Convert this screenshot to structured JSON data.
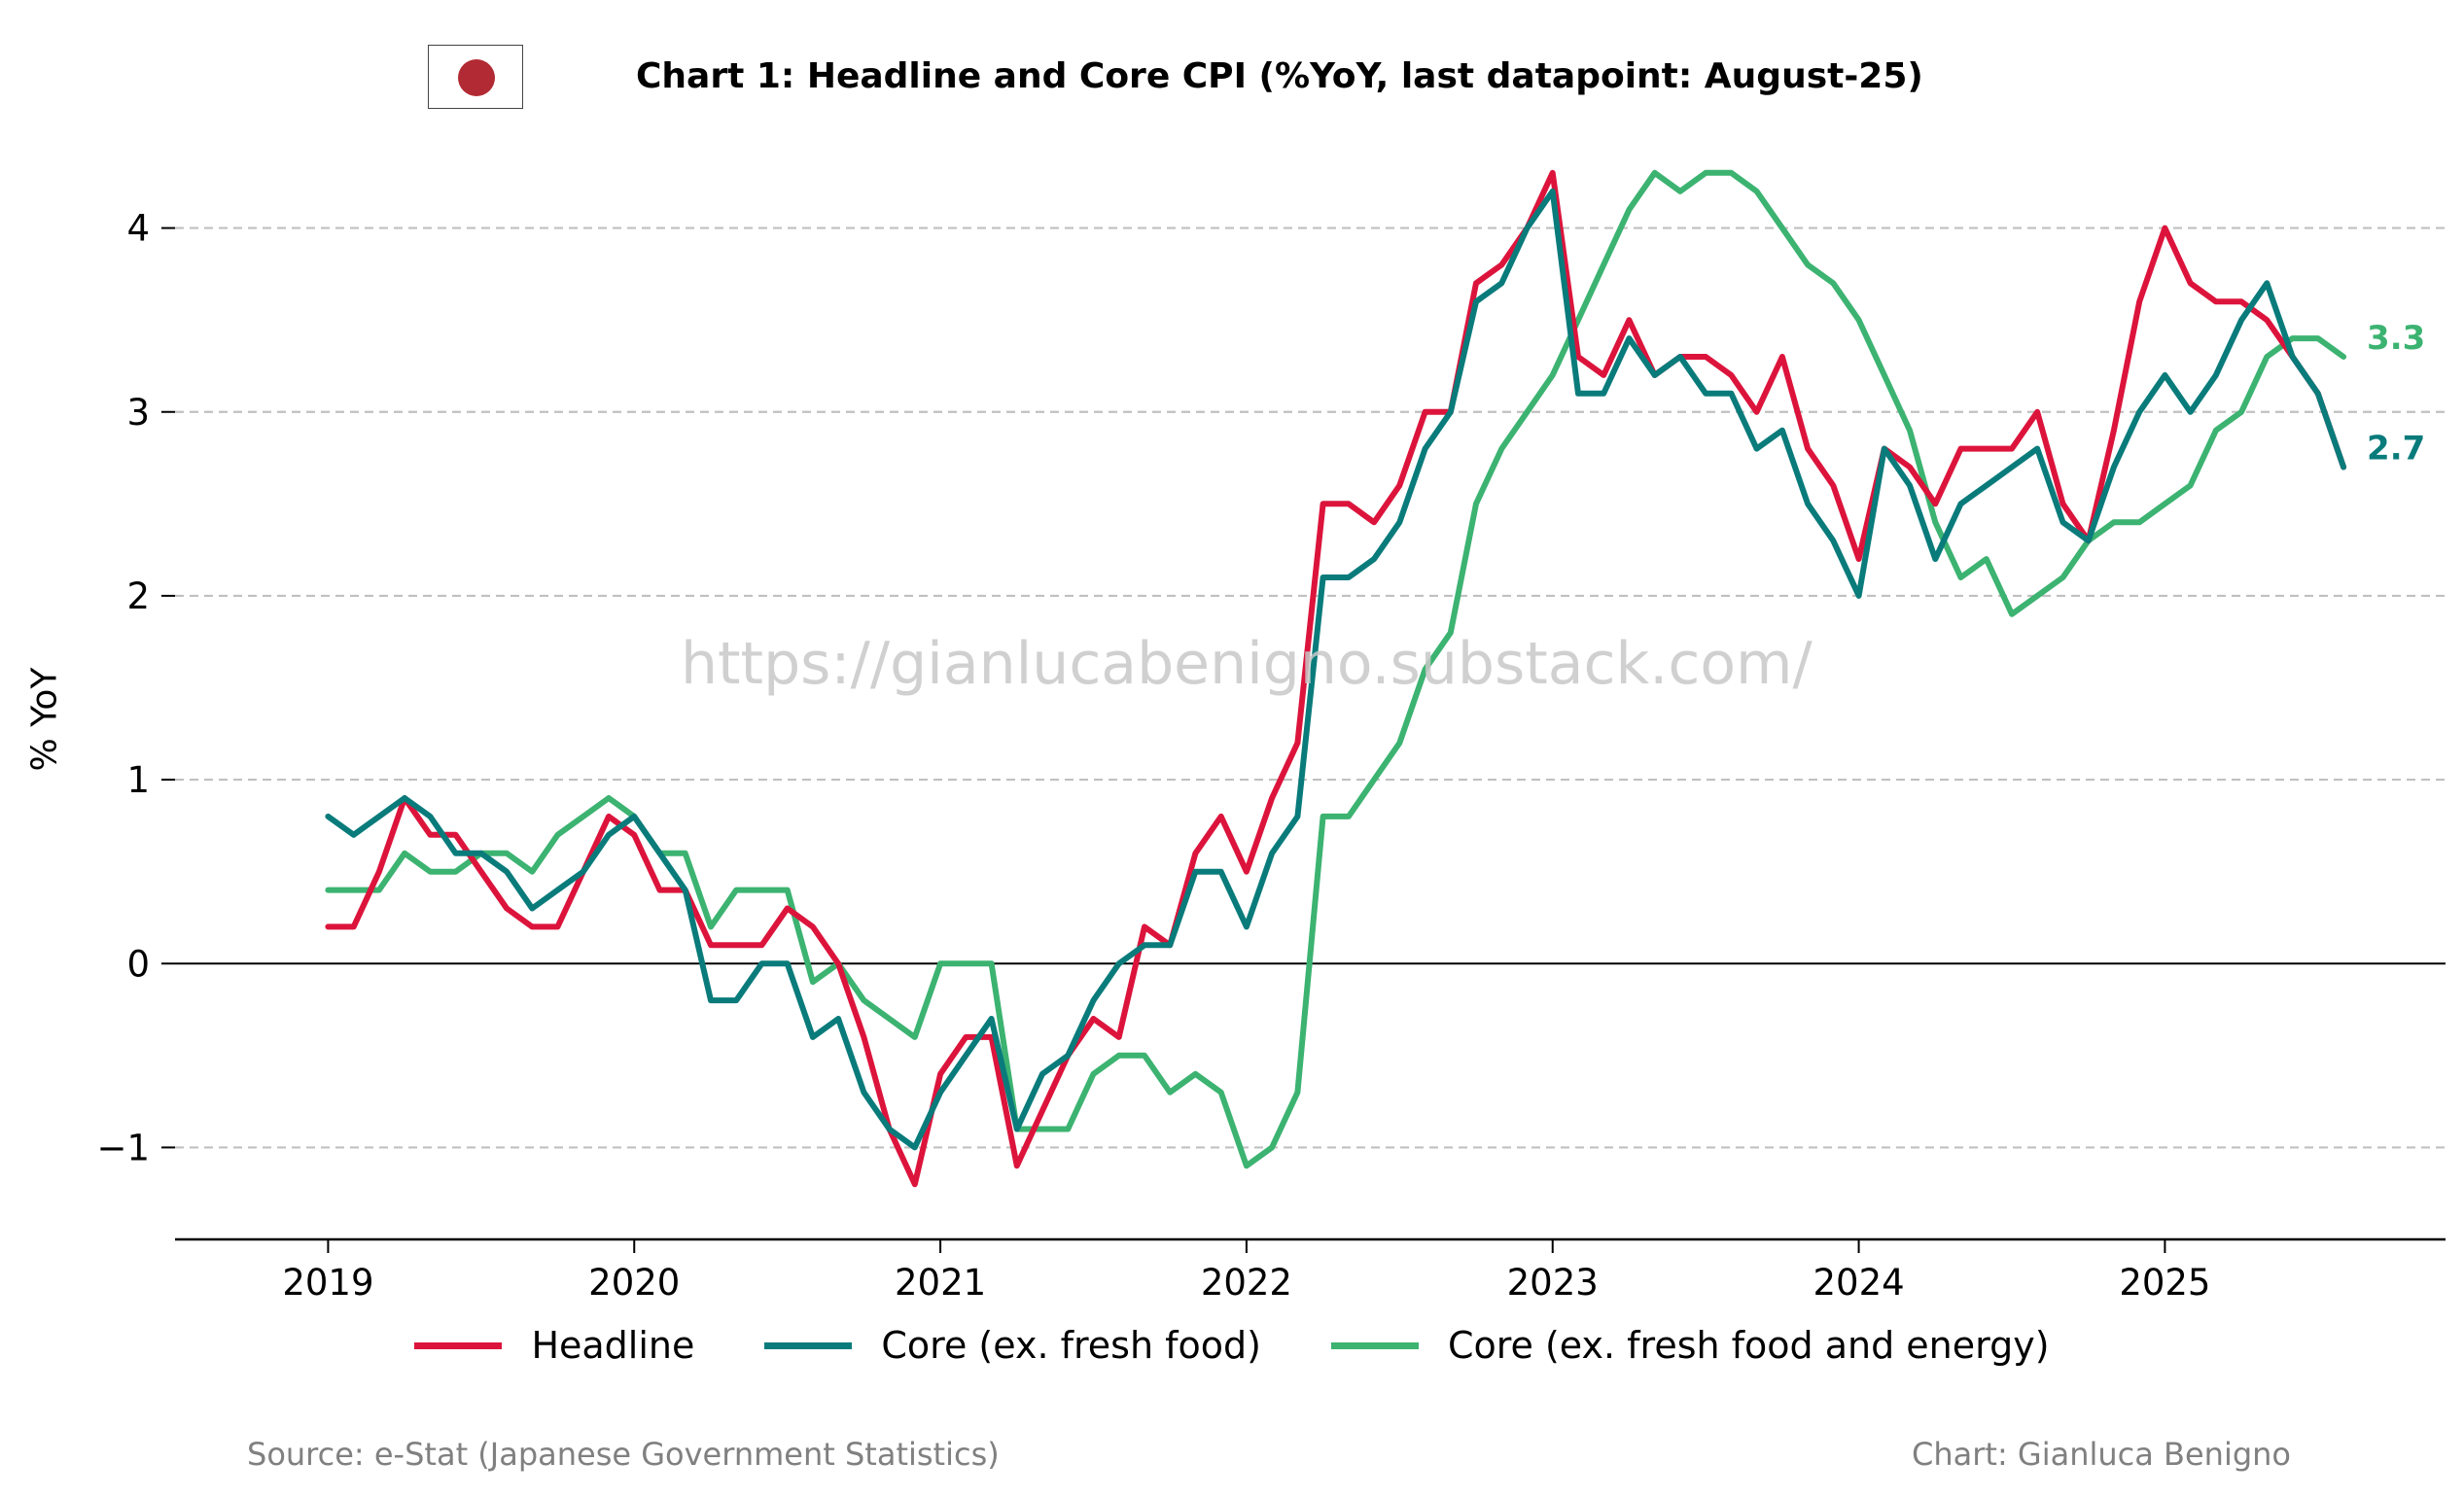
{
  "title": "Chart 1: Headline and Core CPI (%YoY, last datapoint: August-25)",
  "flag": {
    "icon": "japan-flag-icon"
  },
  "watermark": "https://gianlucabenigno.substack.com/",
  "source": "Source: e-Stat (Japanese Government Statistics)",
  "credit": "Chart: Gianluca Benigno",
  "legend": [
    {
      "label": "Headline",
      "color": "#dc143c"
    },
    {
      "label": "Core (ex. fresh food)",
      "color": "#0a7b7b"
    },
    {
      "label": "Core (ex. fresh food and energy)",
      "color": "#3cb371"
    }
  ],
  "chart_data": {
    "type": "line",
    "title": "Chart 1: Headline and Core CPI (%YoY, last datapoint: August-25)",
    "xlabel": "",
    "ylabel": "% YoY",
    "x_start": "2019-01",
    "x_end": "2025-08",
    "frequency": "monthly",
    "xlim": [
      "2018-07",
      "2025-12"
    ],
    "ylim": [
      -1.5,
      4.5
    ],
    "x_ticks": [
      "2019",
      "2020",
      "2021",
      "2022",
      "2023",
      "2024",
      "2025"
    ],
    "y_ticks": [
      -1,
      0,
      1,
      2,
      3,
      4
    ],
    "y_tick_labels": [
      "−1",
      "0",
      "1",
      "2",
      "3",
      "4"
    ],
    "grid": "horizontal dashed",
    "zero_line": true,
    "legend_position": "bottom",
    "end_labels": [
      {
        "series": "Core (ex. fresh food and energy)",
        "text": "3.3"
      },
      {
        "series": "Core (ex. fresh food)",
        "text": "2.7"
      }
    ],
    "series": [
      {
        "name": "Headline",
        "color": "#dc143c",
        "values": [
          0.2,
          0.2,
          0.5,
          0.9,
          0.7,
          0.7,
          0.5,
          0.3,
          0.2,
          0.2,
          0.5,
          0.8,
          0.7,
          0.4,
          0.4,
          0.1,
          0.1,
          0.1,
          0.3,
          0.2,
          0.0,
          -0.4,
          -0.9,
          -1.2,
          -0.6,
          -0.4,
          -0.4,
          -1.1,
          -0.8,
          -0.5,
          -0.3,
          -0.4,
          0.2,
          0.1,
          0.6,
          0.8,
          0.5,
          0.9,
          1.2,
          2.5,
          2.5,
          2.4,
          2.6,
          3.0,
          3.0,
          3.7,
          3.8,
          4.0,
          4.3,
          3.3,
          3.2,
          3.5,
          3.2,
          3.3,
          3.3,
          3.2,
          3.0,
          3.3,
          2.8,
          2.6,
          2.2,
          2.8,
          2.7,
          2.5,
          2.8,
          2.8,
          2.8,
          3.0,
          2.5,
          2.3,
          2.9,
          3.6,
          4.0,
          3.7,
          3.6,
          3.6,
          3.5,
          3.3,
          3.1,
          2.7
        ]
      },
      {
        "name": "Core (ex. fresh food)",
        "color": "#0a7b7b",
        "values": [
          0.8,
          0.7,
          0.8,
          0.9,
          0.8,
          0.6,
          0.6,
          0.5,
          0.3,
          0.4,
          0.5,
          0.7,
          0.8,
          0.6,
          0.4,
          -0.2,
          -0.2,
          0.0,
          0.0,
          -0.4,
          -0.3,
          -0.7,
          -0.9,
          -1.0,
          -0.7,
          -0.5,
          -0.3,
          -0.9,
          -0.6,
          -0.5,
          -0.2,
          0.0,
          0.1,
          0.1,
          0.5,
          0.5,
          0.2,
          0.6,
          0.8,
          2.1,
          2.1,
          2.2,
          2.4,
          2.8,
          3.0,
          3.6,
          3.7,
          4.0,
          4.2,
          3.1,
          3.1,
          3.4,
          3.2,
          3.3,
          3.1,
          3.1,
          2.8,
          2.9,
          2.5,
          2.3,
          2.0,
          2.8,
          2.6,
          2.2,
          2.5,
          2.6,
          2.7,
          2.8,
          2.4,
          2.3,
          2.7,
          3.0,
          3.2,
          3.0,
          3.2,
          3.5,
          3.7,
          3.3,
          3.1,
          2.7
        ]
      },
      {
        "name": "Core (ex. fresh food and energy)",
        "color": "#3cb371",
        "values": [
          0.4,
          0.4,
          0.4,
          0.6,
          0.5,
          0.5,
          0.6,
          0.6,
          0.5,
          0.7,
          0.8,
          0.9,
          0.8,
          0.6,
          0.6,
          0.2,
          0.4,
          0.4,
          0.4,
          -0.1,
          0.0,
          -0.2,
          -0.3,
          -0.4,
          0.0,
          0.0,
          0.0,
          -0.9,
          -0.9,
          -0.9,
          -0.6,
          -0.5,
          -0.5,
          -0.7,
          -0.6,
          -0.7,
          -1.1,
          -1.0,
          -0.7,
          0.8,
          0.8,
          1.0,
          1.2,
          1.6,
          1.8,
          2.5,
          2.8,
          3.0,
          3.2,
          3.5,
          3.8,
          4.1,
          4.3,
          4.2,
          4.3,
          4.3,
          4.2,
          4.0,
          3.8,
          3.7,
          3.5,
          3.2,
          2.9,
          2.4,
          2.1,
          2.2,
          1.9,
          2.0,
          2.1,
          2.3,
          2.4,
          2.4,
          2.5,
          2.6,
          2.9,
          3.0,
          3.3,
          3.4,
          3.4,
          3.3
        ]
      }
    ]
  }
}
